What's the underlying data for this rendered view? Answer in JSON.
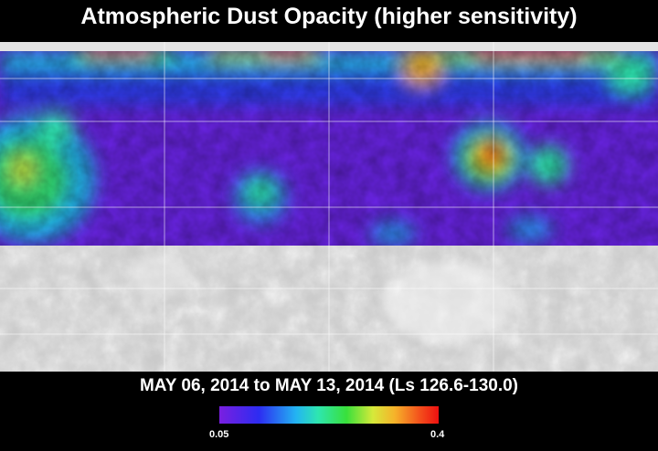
{
  "title": "Atmospheric Dust Opacity (higher sensitivity)",
  "date_range": "MAY 06, 2014 to MAY 13, 2014 (Ls 126.6-130.0)",
  "colorbar": {
    "min_label": "0.05",
    "max_label": "0.4",
    "min_value": 0.05,
    "max_value": 0.4,
    "colors": [
      "#7a1fe0",
      "#2d2cf2",
      "#23b4f2",
      "#2ee6b0",
      "#39e03b",
      "#d6e93a",
      "#f6b22a",
      "#f34b1b",
      "#ee1010"
    ]
  },
  "map": {
    "data_coverage": "northern half",
    "no_data_region": "southern half (grey shaded relief)",
    "grid": true
  }
}
